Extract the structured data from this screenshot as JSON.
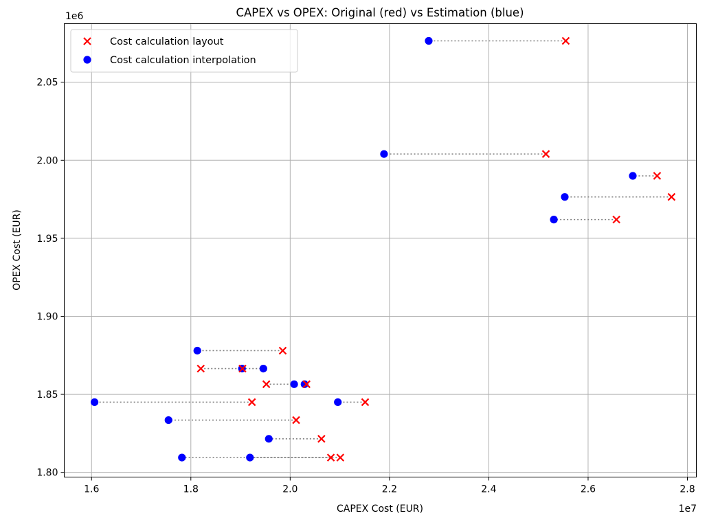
{
  "chart_data": {
    "type": "scatter",
    "title": "CAPEX vs OPEX: Original (red) vs Estimation (blue)",
    "xlabel": "CAPEX Cost (EUR)",
    "ylabel": "OPEX Cost (EUR)",
    "x_offset_text": "1e7",
    "y_offset_text": "1e6",
    "x_scale": 10000000,
    "y_scale": 1000000,
    "xlim": [
      1.545,
      2.818
    ],
    "ylim": [
      1.797,
      2.0875
    ],
    "grid": true,
    "legend_position": "upper-left",
    "x_ticks": [
      1.6,
      1.8,
      2.0,
      2.2,
      2.4,
      2.6,
      2.8
    ],
    "x_tick_labels": [
      "1.6",
      "1.8",
      "2.0",
      "2.2",
      "2.4",
      "2.6",
      "2.8"
    ],
    "y_ticks": [
      1.8,
      1.85,
      1.9,
      1.95,
      2.0,
      2.05
    ],
    "y_tick_labels": [
      "1.80",
      "1.85",
      "1.90",
      "1.95",
      "2.00",
      "2.05"
    ],
    "series": [
      {
        "name": "Cost calculation layout",
        "marker": "x",
        "color": "#ff0000",
        "points": [
          [
            2.555,
            2.0765
          ],
          [
            2.515,
            2.004
          ],
          [
            2.739,
            1.99
          ],
          [
            2.768,
            1.9765
          ],
          [
            2.657,
            1.962
          ],
          [
            1.985,
            1.878
          ],
          [
            1.82,
            1.8665
          ],
          [
            1.904,
            1.8665
          ],
          [
            1.952,
            1.8565
          ],
          [
            2.033,
            1.8565
          ],
          [
            1.923,
            1.845
          ],
          [
            2.151,
            1.845
          ],
          [
            2.012,
            1.8335
          ],
          [
            2.063,
            1.8215
          ],
          [
            2.082,
            1.8095
          ],
          [
            2.101,
            1.8095
          ]
        ]
      },
      {
        "name": "Cost calculation interpolation",
        "marker": "o",
        "color": "#0000ff",
        "points": [
          [
            2.279,
            2.0765
          ],
          [
            2.189,
            2.004
          ],
          [
            2.69,
            1.99
          ],
          [
            2.553,
            1.9765
          ],
          [
            2.531,
            1.962
          ],
          [
            1.813,
            1.878
          ],
          [
            1.946,
            1.8665
          ],
          [
            1.903,
            1.8665
          ],
          [
            2.008,
            1.8565
          ],
          [
            2.029,
            1.8565
          ],
          [
            1.606,
            1.845
          ],
          [
            2.096,
            1.845
          ],
          [
            1.755,
            1.8335
          ],
          [
            1.957,
            1.8215
          ],
          [
            1.782,
            1.8095
          ],
          [
            1.919,
            1.8095
          ]
        ]
      }
    ]
  }
}
